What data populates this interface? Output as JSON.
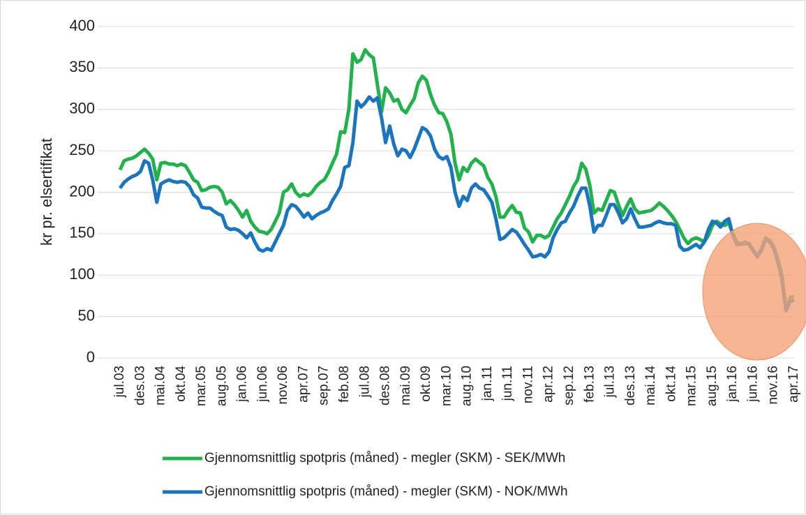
{
  "chart_data": {
    "type": "line",
    "ylabel": "kr pr. elsertifikat",
    "categories": [
      "jul.03",
      null,
      null,
      null,
      null,
      "des.03",
      null,
      null,
      null,
      null,
      "mai.04",
      null,
      null,
      null,
      null,
      "okt.04",
      null,
      null,
      null,
      null,
      "mar.05",
      null,
      null,
      null,
      null,
      "aug.05",
      null,
      null,
      null,
      null,
      "jan.06",
      null,
      null,
      null,
      null,
      "jun.06",
      null,
      null,
      null,
      null,
      "nov.06",
      null,
      null,
      null,
      null,
      "apr.07",
      null,
      null,
      null,
      null,
      "sep.07",
      null,
      null,
      null,
      null,
      "feb.08",
      null,
      null,
      null,
      null,
      "jul.08",
      null,
      null,
      null,
      null,
      "des.08",
      null,
      null,
      null,
      null,
      "mai.09",
      null,
      null,
      null,
      null,
      "okt.09",
      null,
      null,
      null,
      null,
      "mar.10",
      null,
      null,
      null,
      null,
      "aug.10",
      null,
      null,
      null,
      null,
      "jan.11",
      null,
      null,
      null,
      null,
      "jun.11",
      null,
      null,
      null,
      null,
      "nov.11",
      null,
      null,
      null,
      null,
      "apr.12",
      null,
      null,
      null,
      null,
      "sep.12",
      null,
      null,
      null,
      null,
      "feb.13",
      null,
      null,
      null,
      null,
      "jul.13",
      null,
      null,
      null,
      null,
      "des.13",
      null,
      null,
      null,
      null,
      "mai.14",
      null,
      null,
      null,
      null,
      "okt.14",
      null,
      null,
      null,
      null,
      "mar.15",
      null,
      null,
      null,
      null,
      "aug.15",
      null,
      null,
      null,
      null,
      "jan.16",
      null,
      null,
      null,
      null,
      "jun.16",
      null,
      null,
      null,
      null,
      "nov.16",
      null,
      null,
      null,
      null,
      "apr.17"
    ],
    "series": [
      {
        "name": "Gjennomsnittlig spotpris (måned) - megler (SKM) - SEK/MWh",
        "color": "#22b14c",
        "values": [
          227,
          238,
          240,
          241,
          244,
          248,
          252,
          247,
          240,
          215,
          235,
          236,
          234,
          234,
          232,
          234,
          232,
          224,
          215,
          212,
          202,
          203,
          206,
          207,
          206,
          200,
          186,
          190,
          185,
          178,
          170,
          178,
          165,
          158,
          153,
          152,
          150,
          155,
          165,
          175,
          200,
          203,
          210,
          200,
          195,
          198,
          196,
          200,
          207,
          212,
          215,
          224,
          235,
          246,
          273,
          272,
          300,
          367,
          357,
          360,
          372,
          366,
          362,
          330,
          297,
          326,
          320,
          310,
          312,
          300,
          296,
          305,
          313,
          332,
          340,
          335,
          318,
          305,
          296,
          295,
          285,
          270,
          235,
          215,
          230,
          225,
          235,
          240,
          236,
          232,
          218,
          210,
          195,
          170,
          170,
          178,
          184,
          176,
          175,
          157,
          152,
          140,
          148,
          148,
          145,
          148,
          158,
          168,
          175,
          185,
          195,
          207,
          215,
          235,
          228,
          208,
          175,
          180,
          178,
          190,
          202,
          200,
          185,
          172,
          183,
          192,
          180,
          175,
          176,
          177,
          178,
          182,
          187,
          183,
          178,
          172,
          165,
          155,
          145,
          138,
          143,
          145,
          143,
          140,
          148,
          160,
          165,
          162,
          160,
          163,
          150,
          140,
          137,
          140,
          138,
          130,
          123,
          132,
          145,
          142,
          135,
          120,
          100,
          60,
          73,
          74
        ]
      },
      {
        "name": "Gjennomsnittlig spotpris (måned) - megler (SKM) - NOK/MWh",
        "color": "#1b75bc",
        "values": [
          205,
          212,
          216,
          219,
          221,
          225,
          238,
          235,
          215,
          188,
          210,
          213,
          215,
          213,
          212,
          213,
          212,
          207,
          197,
          193,
          182,
          181,
          181,
          177,
          174,
          172,
          158,
          155,
          156,
          154,
          150,
          145,
          151,
          140,
          131,
          129,
          132,
          130,
          140,
          150,
          160,
          178,
          185,
          183,
          177,
          170,
          175,
          168,
          172,
          175,
          177,
          180,
          190,
          198,
          207,
          230,
          232,
          260,
          310,
          303,
          308,
          315,
          310,
          314,
          290,
          260,
          280,
          258,
          244,
          252,
          250,
          242,
          252,
          265,
          278,
          275,
          268,
          252,
          243,
          240,
          243,
          230,
          200,
          183,
          195,
          190,
          205,
          210,
          205,
          203,
          196,
          188,
          168,
          143,
          145,
          150,
          155,
          152,
          145,
          137,
          130,
          122,
          123,
          125,
          122,
          128,
          145,
          155,
          163,
          165,
          175,
          183,
          195,
          205,
          205,
          183,
          152,
          160,
          160,
          172,
          185,
          185,
          175,
          163,
          168,
          180,
          168,
          158,
          158,
          159,
          160,
          163,
          165,
          163,
          162,
          162,
          160,
          135,
          130,
          131,
          134,
          137,
          133,
          140,
          155,
          165,
          163,
          158,
          165,
          168,
          148,
          137,
          138,
          138,
          137,
          129,
          122,
          130,
          143,
          140,
          132,
          116,
          95,
          57,
          68,
          70
        ]
      }
    ],
    "ylim": [
      0,
      400
    ],
    "yticks": [
      0,
      50,
      100,
      150,
      200,
      250,
      300,
      350,
      400
    ],
    "grid": true,
    "legend": "bottom"
  }
}
